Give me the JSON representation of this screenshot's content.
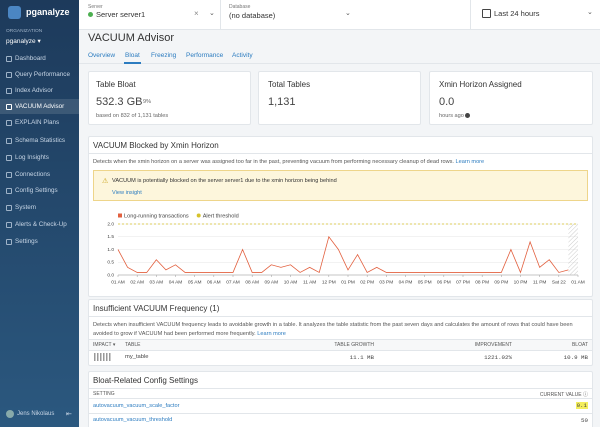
{
  "sidebar": {
    "logo": "pganalyze",
    "org_label": "ORGANIZATION",
    "org": "pganalyze",
    "menu": [
      "Dashboard",
      "Query Performance",
      "Index Advisor",
      "VACUUM Advisor",
      "EXPLAIN Plans",
      "Schema Statistics",
      "Log Insights",
      "Connections",
      "Config Settings",
      "System",
      "Alerts & Check-Up",
      "Settings"
    ],
    "active": 3,
    "user": "Jens Nikolaus"
  },
  "topbar": {
    "server_label": "Server",
    "server": "Server server1",
    "database_label": "Database",
    "database": "(no database)",
    "range": "Last 24 hours"
  },
  "page": {
    "title": "VACUUM Advisor",
    "tabs": [
      "Overview",
      "Bloat",
      "Freezing",
      "Performance",
      "Activity"
    ],
    "active_tab": 1
  },
  "cards": [
    {
      "title": "Table Bloat",
      "value": "532.3 GB",
      "delta": "9%",
      "note": "based on 832 of 1,131 tables"
    },
    {
      "title": "Total Tables",
      "value": "1,131"
    },
    {
      "title": "Xmin Horizon Assigned",
      "value": "0.0",
      "note": "hours ago"
    }
  ],
  "xmin_section": {
    "title": "VACUUM Blocked by Xmin Horizon",
    "description": "Detects when the xmin horizon on a server was assigned too far in the past, preventing vacuum from performing necessary cleanup of dead rows.",
    "link": "Learn more",
    "warning": "VACUUM is potentially blocked on the server server1 due to the xmin horizon being behind",
    "warning_link": "View insight"
  },
  "chart_data": {
    "type": "line",
    "categories": [
      "01 AM",
      null,
      "02 AM",
      null,
      "03 AM",
      null,
      "04 AM",
      null,
      "05 AM",
      null,
      "06 AM",
      null,
      "07 AM",
      null,
      "08 AM",
      null,
      "09 AM",
      null,
      "10 AM",
      null,
      "11 AM",
      null,
      "12 PM",
      null,
      "01 PM",
      null,
      "02 PM",
      null,
      "03 PM",
      null,
      "04 PM",
      null,
      "05 PM",
      null,
      "06 PM",
      null,
      "07 PM",
      null,
      "08 PM",
      null,
      "09 PM",
      null,
      "10 PM",
      null,
      "11 PM",
      null,
      "Sat 22",
      null,
      "01 AM"
    ],
    "series": [
      {
        "name": "Long-running transactions",
        "color": "#e2603f",
        "values": [
          1.0,
          0.3,
          0.1,
          0.1,
          0.6,
          0.2,
          0.4,
          0.1,
          0.1,
          0.1,
          0.1,
          0.1,
          0.1,
          1.0,
          0.1,
          0.1,
          0.4,
          0.3,
          0.4,
          0.1,
          0.3,
          0.1,
          1.5,
          1.0,
          0.2,
          0.8,
          0.1,
          0.3,
          0.1,
          0.1,
          0.1,
          0.1,
          0.1,
          0.1,
          0.1,
          0.1,
          0.1,
          0.1,
          0.1,
          0.1,
          0.1,
          1.0,
          0.1,
          1.3,
          0.3,
          0.6,
          0.1,
          0.2,
          null
        ]
      }
    ],
    "threshold": {
      "name": "Alert threshold",
      "value": 2,
      "color": "#d6c22b"
    },
    "ylim": [
      0,
      2
    ],
    "yticks": [
      {
        "value": 0,
        "label": "0.0"
      },
      0.5,
      {
        "value": 1,
        "label": "1.0"
      },
      1.5,
      {
        "value": 2,
        "label": "2.0"
      }
    ],
    "grid": true
  },
  "frequency_section": {
    "title": "Insufficient VACUUM Frequency (1)",
    "description": "Detects when insufficient VACUUM frequency leads to avoidable growth in a table. It analyzes the table statistic from the past seven days and calculates the amount of rows that could have been avoided to grow if VACUUM had been performed more frequently.",
    "link": "Learn more",
    "columns": [
      "IMPACT",
      "TABLE",
      "TABLE GROWTH",
      "IMPROVEMENT",
      "BLOAT"
    ],
    "rows": [
      [
        "my_table",
        "11.1 MB",
        "1221.02%",
        "10.9 MB"
      ]
    ]
  },
  "config_section": {
    "title": "Bloat-Related Config Settings",
    "columns": [
      "SETTING",
      "CURRENT VALUE"
    ],
    "rows": [
      [
        "autovacuum_vacuum_scale_factor",
        "0.1"
      ],
      [
        "autovacuum_vacuum_threshold",
        "50"
      ]
    ]
  }
}
